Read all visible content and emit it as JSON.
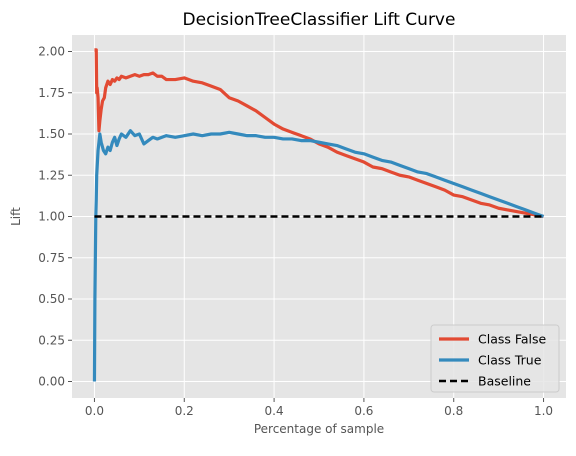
{
  "chart_data": {
    "type": "line",
    "title": "DecisionTreeClassifier Lift Curve",
    "xlabel": "Percentage of sample",
    "ylabel": "Lift",
    "xlim": [
      -0.05,
      1.05
    ],
    "ylim": [
      -0.1,
      2.1
    ],
    "xticks": [
      0.0,
      0.2,
      0.4,
      0.6,
      0.8,
      1.0
    ],
    "xtick_labels": [
      "0.0",
      "0.2",
      "0.4",
      "0.6",
      "0.8",
      "1.0"
    ],
    "yticks": [
      0.0,
      0.25,
      0.5,
      0.75,
      1.0,
      1.25,
      1.5,
      1.75,
      2.0
    ],
    "ytick_labels": [
      "0.00",
      "0.25",
      "0.50",
      "0.75",
      "1.00",
      "1.25",
      "1.50",
      "1.75",
      "2.00"
    ],
    "grid": true,
    "legend_position": "lower-right",
    "colors": {
      "background": "#e5e5e5",
      "grid": "#ffffff",
      "class_false": "#e24a33",
      "class_true": "#348abd",
      "baseline": "#000000"
    },
    "series": [
      {
        "name": "Class False",
        "x": [
          0.0,
          0.004,
          0.005,
          0.006,
          0.008,
          0.01,
          0.012,
          0.015,
          0.018,
          0.022,
          0.025,
          0.03,
          0.035,
          0.04,
          0.045,
          0.05,
          0.055,
          0.06,
          0.07,
          0.08,
          0.09,
          0.1,
          0.11,
          0.12,
          0.13,
          0.14,
          0.15,
          0.16,
          0.18,
          0.2,
          0.22,
          0.24,
          0.26,
          0.28,
          0.3,
          0.32,
          0.34,
          0.36,
          0.38,
          0.4,
          0.42,
          0.44,
          0.46,
          0.48,
          0.5,
          0.52,
          0.54,
          0.56,
          0.58,
          0.6,
          0.62,
          0.64,
          0.66,
          0.68,
          0.7,
          0.72,
          0.74,
          0.76,
          0.78,
          0.8,
          0.82,
          0.84,
          0.86,
          0.88,
          0.9,
          0.92,
          0.94,
          0.96,
          0.98,
          1.0
        ],
        "y": [
          2.01,
          2.01,
          1.75,
          1.78,
          1.72,
          1.52,
          1.58,
          1.65,
          1.7,
          1.72,
          1.78,
          1.82,
          1.8,
          1.83,
          1.82,
          1.84,
          1.83,
          1.85,
          1.84,
          1.85,
          1.86,
          1.85,
          1.86,
          1.86,
          1.87,
          1.85,
          1.85,
          1.83,
          1.83,
          1.84,
          1.82,
          1.81,
          1.79,
          1.77,
          1.72,
          1.7,
          1.67,
          1.64,
          1.6,
          1.56,
          1.53,
          1.51,
          1.49,
          1.47,
          1.44,
          1.42,
          1.39,
          1.37,
          1.35,
          1.33,
          1.3,
          1.29,
          1.27,
          1.25,
          1.24,
          1.22,
          1.2,
          1.18,
          1.16,
          1.13,
          1.12,
          1.1,
          1.08,
          1.07,
          1.05,
          1.04,
          1.03,
          1.02,
          1.01,
          1.0
        ]
      },
      {
        "name": "Class True",
        "x": [
          0.0,
          0.001,
          0.002,
          0.003,
          0.004,
          0.005,
          0.006,
          0.007,
          0.008,
          0.01,
          0.012,
          0.015,
          0.018,
          0.02,
          0.025,
          0.03,
          0.035,
          0.04,
          0.045,
          0.05,
          0.055,
          0.06,
          0.07,
          0.08,
          0.09,
          0.1,
          0.11,
          0.12,
          0.13,
          0.14,
          0.16,
          0.18,
          0.2,
          0.22,
          0.24,
          0.26,
          0.28,
          0.3,
          0.32,
          0.34,
          0.36,
          0.38,
          0.4,
          0.42,
          0.44,
          0.46,
          0.48,
          0.5,
          0.52,
          0.54,
          0.56,
          0.58,
          0.6,
          0.62,
          0.64,
          0.66,
          0.68,
          0.7,
          0.72,
          0.74,
          0.76,
          0.78,
          0.8,
          0.82,
          0.84,
          0.86,
          0.88,
          0.9,
          0.92,
          0.94,
          0.96,
          0.98,
          1.0
        ],
        "y": [
          0.0,
          0.5,
          0.75,
          1.0,
          1.1,
          1.25,
          1.3,
          1.35,
          1.4,
          1.45,
          1.5,
          1.45,
          1.42,
          1.4,
          1.38,
          1.42,
          1.4,
          1.45,
          1.48,
          1.43,
          1.47,
          1.5,
          1.48,
          1.52,
          1.49,
          1.5,
          1.44,
          1.46,
          1.48,
          1.47,
          1.49,
          1.48,
          1.49,
          1.5,
          1.49,
          1.5,
          1.5,
          1.51,
          1.5,
          1.49,
          1.49,
          1.48,
          1.48,
          1.47,
          1.47,
          1.46,
          1.46,
          1.45,
          1.44,
          1.43,
          1.41,
          1.39,
          1.38,
          1.36,
          1.34,
          1.33,
          1.31,
          1.29,
          1.27,
          1.26,
          1.24,
          1.22,
          1.2,
          1.18,
          1.16,
          1.14,
          1.12,
          1.1,
          1.08,
          1.06,
          1.04,
          1.02,
          1.0
        ]
      },
      {
        "name": "Baseline",
        "x": [
          0.0,
          1.0
        ],
        "y": [
          1.0,
          1.0
        ],
        "dashed": true
      }
    ]
  }
}
